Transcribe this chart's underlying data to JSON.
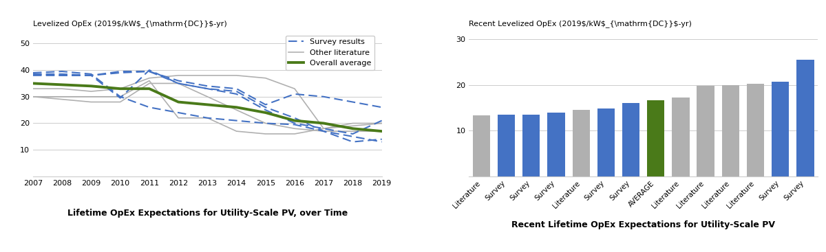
{
  "left_title": "Lifetime OpEx Expectations for Utility-Scale PV, over Time",
  "right_title": "Recent Lifetime OpEx Expectations for Utility-Scale PV",
  "left_ylabel": "Levelized OpEx (2019$/kW",
  "left_ylabel_sub": "DC",
  "left_ylabel_end": "-yr)",
  "right_ylabel": "Recent Levelized OpEx (2019$/kW",
  "right_ylabel_sub": "DC",
  "right_ylabel_end": "-yr)",
  "left_ylim": [
    0,
    55
  ],
  "left_yticks": [
    0,
    10,
    20,
    30,
    40,
    50
  ],
  "right_ylim": [
    0,
    32
  ],
  "right_yticks": [
    0,
    10,
    20,
    30
  ],
  "x_years": [
    2007,
    2008,
    2009,
    2010,
    2011,
    2012,
    2013,
    2014,
    2015,
    2016,
    2017,
    2018,
    2019
  ],
  "survey_lines": [
    [
      39,
      39.5,
      38.5,
      30,
      26,
      24,
      22,
      21,
      20,
      19.5,
      17,
      13,
      14
    ],
    [
      38.5,
      38,
      38,
      29.5,
      40,
      35,
      33,
      31,
      25,
      20,
      18,
      16,
      21
    ],
    [
      38,
      38,
      38,
      39,
      39.5,
      35,
      33,
      32,
      26,
      22,
      17,
      15,
      13
    ],
    [
      38.5,
      38.5,
      38,
      39.5,
      39.5,
      36,
      34,
      33,
      27,
      31,
      30,
      28,
      26
    ]
  ],
  "literature_lines": [
    [
      33,
      33,
      32,
      33,
      37,
      38,
      38,
      38,
      37,
      33,
      18,
      20,
      20
    ],
    [
      30,
      30,
      30,
      30,
      36,
      22,
      22,
      17,
      16,
      16,
      18,
      19,
      20
    ],
    [
      30,
      29,
      28,
      28,
      35,
      35,
      30,
      25,
      20,
      18,
      17,
      17,
      17
    ]
  ],
  "overall_average": [
    35,
    34.5,
    34,
    33,
    33,
    28,
    27,
    26,
    24,
    21,
    20,
    18,
    17
  ],
  "survey_color": "#4472C4",
  "literature_color": "#b0b0b0",
  "average_color": "#4a7a19",
  "bar_categories": [
    "Literature",
    "Survey",
    "Survey",
    "Survey",
    "Literature",
    "Survey",
    "Survey",
    "AVERAGE",
    "Literature",
    "Literature",
    "Literature",
    "Literature",
    "Survey",
    "Survey"
  ],
  "bar_values": [
    13.3,
    13.5,
    13.5,
    14.0,
    14.5,
    14.8,
    16.0,
    16.6,
    17.3,
    19.9,
    20.0,
    20.3,
    20.8,
    25.5
  ],
  "bar_colors": [
    "#b0b0b0",
    "#4472C4",
    "#4472C4",
    "#4472C4",
    "#b0b0b0",
    "#4472C4",
    "#4472C4",
    "#4a7a19",
    "#b0b0b0",
    "#b0b0b0",
    "#b0b0b0",
    "#b0b0b0",
    "#4472C4",
    "#4472C4"
  ],
  "legend_survey": "Survey results",
  "legend_literature": "Other literature",
  "legend_average": "Overall average"
}
